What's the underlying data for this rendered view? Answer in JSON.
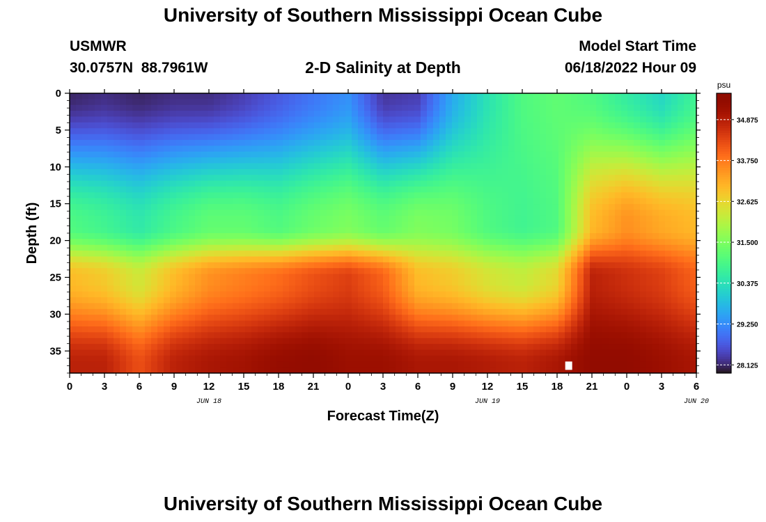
{
  "page": {
    "title_top": "University of Southern Mississippi Ocean Cube",
    "title_bottom": "University of Southern Mississippi Ocean Cube",
    "station": {
      "name": "USMWR",
      "coords": "30.0757N  88.7961W"
    },
    "plot_title": "2-D Salinity at Depth",
    "model_start": {
      "label": "Model Start Time",
      "value": "06/18/2022 Hour 09"
    }
  },
  "chart_data": {
    "type": "heatmap",
    "title": "2-D Salinity at Depth",
    "xlabel": "Forecast Time(Z)",
    "ylabel": "Depth (ft)",
    "x_tick_labels": [
      "0",
      "3",
      "6",
      "9",
      "12",
      "15",
      "18",
      "21",
      "0",
      "3",
      "6",
      "9",
      "12",
      "15",
      "18",
      "21",
      "0",
      "3",
      "6"
    ],
    "date_labels": [
      {
        "label": "JUN 18",
        "hour": 12
      },
      {
        "label": "JUN 19",
        "hour": 36
      },
      {
        "label": "JUN 20",
        "hour": 54
      }
    ],
    "xlim": [
      0,
      54
    ],
    "y_ticks": [
      0,
      5,
      10,
      15,
      20,
      25,
      30,
      35
    ],
    "ylim": [
      0,
      38
    ],
    "y_inverted": true,
    "colorbar": {
      "unit": "psu",
      "ticks": [
        34.875,
        33.75,
        32.625,
        31.5,
        30.375,
        29.25,
        28.125
      ],
      "tick_labels": [
        "34.875",
        "33.750",
        "32.625",
        "31.500",
        "30.375",
        "29.250",
        "28.125"
      ],
      "range": [
        27.9,
        35.6
      ],
      "colormap": "turbo"
    },
    "depth_profiles": {
      "time_hours": [
        0,
        3,
        6,
        9,
        12,
        15,
        18,
        21,
        24,
        27,
        30,
        33,
        36,
        39,
        42,
        45,
        48,
        51,
        54
      ],
      "surface_salinity": [
        28.1,
        28.2,
        28.1,
        28.2,
        28.2,
        28.4,
        28.7,
        29.0,
        29.3,
        28.3,
        28.4,
        29.6,
        30.4,
        31.0,
        31.2,
        31.0,
        30.6,
        30.2,
        30.8
      ],
      "mid_depth_18ft": [
        31.0,
        30.8,
        30.5,
        30.9,
        31.2,
        31.2,
        31.0,
        31.3,
        31.5,
        31.2,
        31.5,
        31.4,
        31.0,
        30.8,
        31.0,
        33.0,
        33.5,
        33.2,
        33.0
      ],
      "depth_25ft": [
        33.0,
        32.8,
        32.3,
        33.0,
        33.5,
        33.7,
        33.9,
        34.2,
        34.4,
        34.0,
        33.0,
        32.8,
        32.4,
        32.2,
        32.6,
        34.8,
        34.6,
        34.4,
        34.0
      ],
      "bottom_37ft": [
        34.8,
        34.8,
        34.2,
        34.8,
        35.0,
        35.1,
        35.3,
        35.4,
        35.2,
        35.2,
        35.0,
        35.0,
        34.9,
        34.8,
        35.0,
        35.4,
        35.4,
        35.2,
        35.0
      ]
    },
    "missing_marker": {
      "hour": 43,
      "depth": 37
    }
  }
}
